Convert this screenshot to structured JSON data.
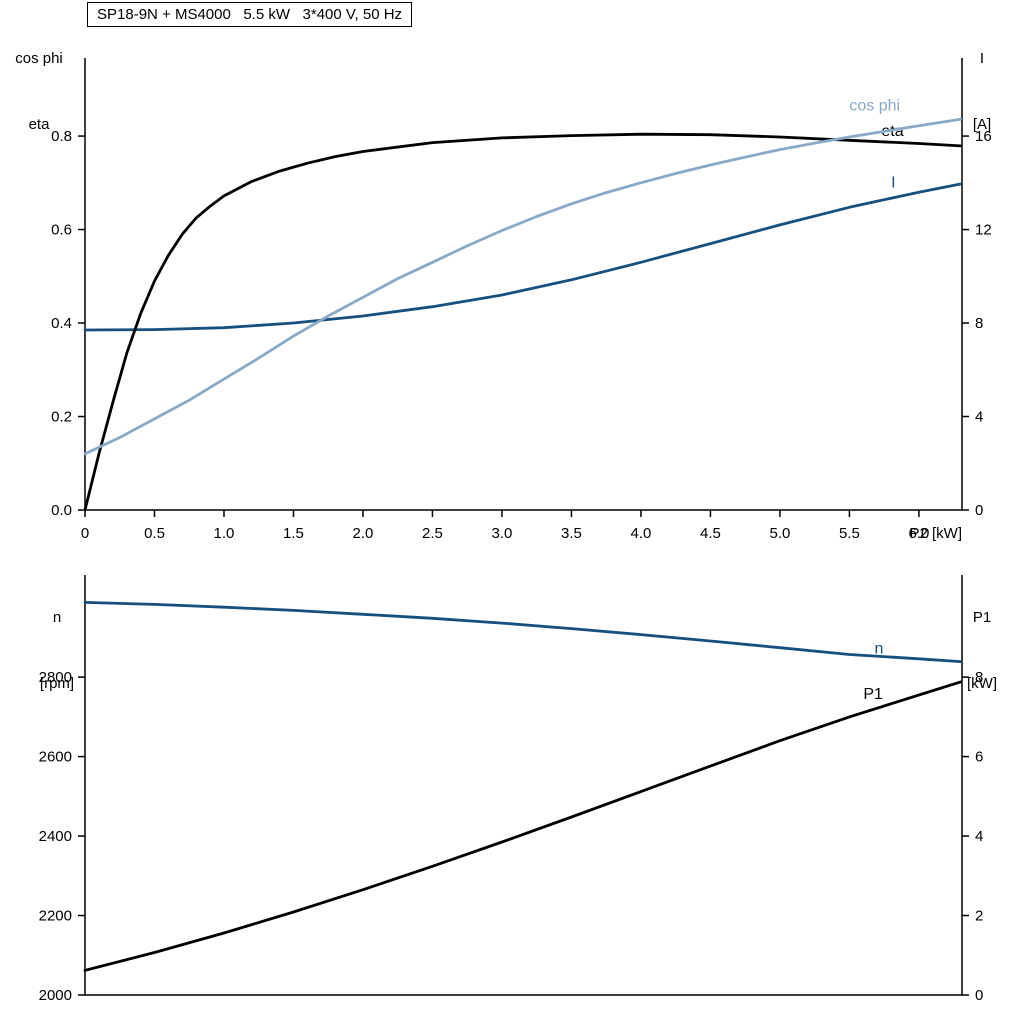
{
  "chart_data": [
    {
      "type": "line",
      "title": "SP18-9N + MS4000   5.5 kW   3*400 V, 50 Hz",
      "x_label": "P2 [kW]",
      "y_left_label": [
        "cos phi",
        "eta"
      ],
      "y_right_label": [
        "I",
        "[A]"
      ],
      "x_range": [
        0,
        6.31
      ],
      "y_left_range": [
        0,
        0.967
      ],
      "y_right_range": [
        0,
        19.34
      ],
      "x_ticks": [
        0,
        0.5,
        1.0,
        1.5,
        2.0,
        2.5,
        3.0,
        3.5,
        4.0,
        4.5,
        5.0,
        5.5,
        6.0
      ],
      "x_tick_labels": [
        "0",
        "0.5",
        "1.0",
        "1.5",
        "2.0",
        "2.5",
        "3.0",
        "3.5",
        "4.0",
        "4.5",
        "5.0",
        "5.5",
        "6.0"
      ],
      "y_left_ticks": [
        0.0,
        0.2,
        0.4,
        0.6,
        0.8
      ],
      "y_left_tick_labels": [
        "0.0",
        "0.2",
        "0.4",
        "0.6",
        "0.8"
      ],
      "y_right_ticks": [
        0,
        4,
        8,
        12,
        16
      ],
      "y_right_tick_labels": [
        "0",
        "4",
        "8",
        "12",
        "16"
      ],
      "grid": false,
      "series": [
        {
          "name": "I",
          "axis": "right",
          "color": "#17507e",
          "label_x": 5.8,
          "label_y": 13.8,
          "x": [
            0,
            0.5,
            1.0,
            1.5,
            1.75,
            2.0,
            2.5,
            3.0,
            3.5,
            4.0,
            4.5,
            5.0,
            5.5,
            6.0,
            6.3
          ],
          "y": [
            7.7,
            7.72,
            7.8,
            8.0,
            8.15,
            8.3,
            8.7,
            9.2,
            9.85,
            10.6,
            11.4,
            12.2,
            12.95,
            13.6,
            13.95
          ]
        },
        {
          "name": "eta",
          "axis": "left",
          "color": "#000000",
          "label_x": 5.73,
          "label_y": 0.8,
          "x": [
            0,
            0.1,
            0.2,
            0.3,
            0.4,
            0.5,
            0.6,
            0.7,
            0.8,
            0.9,
            1.0,
            1.2,
            1.4,
            1.6,
            1.8,
            2.0,
            2.5,
            3.0,
            3.5,
            4.0,
            4.5,
            5.0,
            5.5,
            6.0,
            6.3
          ],
          "y": [
            0,
            0.12,
            0.23,
            0.335,
            0.42,
            0.49,
            0.545,
            0.59,
            0.625,
            0.65,
            0.672,
            0.703,
            0.725,
            0.742,
            0.756,
            0.767,
            0.786,
            0.796,
            0.801,
            0.804,
            0.803,
            0.798,
            0.791,
            0.784,
            0.779
          ]
        },
        {
          "name": "cos phi",
          "axis": "left",
          "color": "#89a9c7",
          "label_x": 5.5,
          "label_y": 0.855,
          "x": [
            0,
            0.25,
            0.5,
            0.75,
            1.0,
            1.25,
            1.5,
            1.75,
            2.0,
            2.25,
            2.5,
            2.75,
            3.0,
            3.25,
            3.5,
            3.75,
            4.0,
            4.25,
            4.5,
            4.75,
            5.0,
            5.25,
            5.5,
            5.75,
            6.0,
            6.3
          ],
          "y": [
            0.12,
            0.155,
            0.195,
            0.235,
            0.28,
            0.325,
            0.372,
            0.415,
            0.455,
            0.495,
            0.53,
            0.565,
            0.598,
            0.628,
            0.655,
            0.679,
            0.7,
            0.72,
            0.738,
            0.755,
            0.771,
            0.785,
            0.798,
            0.81,
            0.822,
            0.836
          ]
        }
      ]
    },
    {
      "type": "line",
      "title": "",
      "x_label": "",
      "y_left_label": [
        "n",
        "[rpm]"
      ],
      "y_right_label": [
        "P1",
        "[kW]"
      ],
      "x_range": [
        0,
        6.31
      ],
      "y_left_range": [
        2000,
        3057
      ],
      "y_right_range": [
        0,
        10.57
      ],
      "x_ticks": [],
      "x_tick_labels": [],
      "y_left_ticks": [
        2000,
        2200,
        2400,
        2600,
        2800
      ],
      "y_left_tick_labels": [
        "2000",
        "2200",
        "2400",
        "2600",
        "2800"
      ],
      "y_right_ticks": [
        0,
        2,
        4,
        6,
        8
      ],
      "y_right_tick_labels": [
        "0",
        "2",
        "4",
        "6",
        "8"
      ],
      "grid": false,
      "series": [
        {
          "name": "n",
          "axis": "left",
          "color": "#17507e",
          "label_x": 5.68,
          "label_y": 2860,
          "x": [
            0,
            0.5,
            1,
            1.5,
            2,
            2.5,
            3,
            3.5,
            4,
            4.5,
            5,
            5.5,
            6,
            6.3
          ],
          "y": [
            2988,
            2983,
            2976,
            2968,
            2958,
            2948,
            2936,
            2922,
            2907,
            2891,
            2874,
            2857,
            2846,
            2839
          ]
        },
        {
          "name": "P1",
          "axis": "right",
          "color": "#000000",
          "label_x": 5.6,
          "label_y": 7.45,
          "x": [
            0,
            0.5,
            1,
            1.5,
            2,
            2.5,
            3,
            3.5,
            4,
            4.5,
            5,
            5.5,
            6,
            6.3
          ],
          "y": [
            0.62,
            1.07,
            1.56,
            2.09,
            2.65,
            3.24,
            3.85,
            4.48,
            5.12,
            5.76,
            6.4,
            7.0,
            7.55,
            7.88
          ]
        }
      ]
    }
  ]
}
